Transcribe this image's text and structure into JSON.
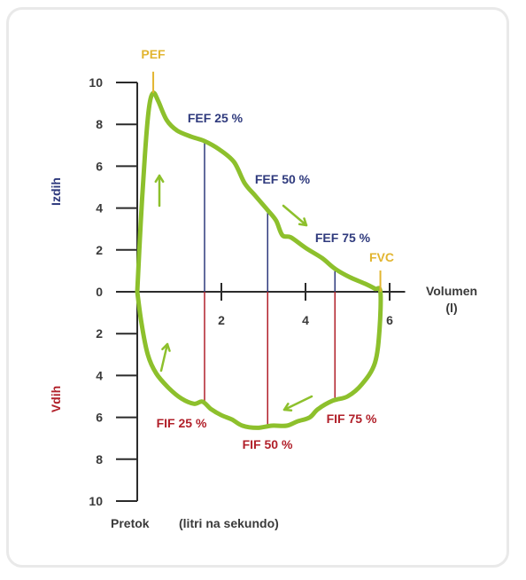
{
  "chart_data": {
    "type": "line",
    "x_axis": {
      "range": [
        0,
        6.2
      ],
      "ticks": [
        2,
        4,
        6
      ],
      "tick_labels": [
        "2",
        "4",
        "6"
      ],
      "label_line1": "Volumen",
      "label_line2": "(l)"
    },
    "y_axis": {
      "range": [
        -10,
        10
      ],
      "ticks": [
        10,
        8,
        6,
        4,
        2,
        0,
        -2,
        -4,
        -6,
        -8,
        -10
      ],
      "tick_labels": [
        "10",
        "8",
        "6",
        "4",
        "2",
        "0",
        "2",
        "4",
        "6",
        "8",
        "10"
      ],
      "upper_label": "Izdih",
      "lower_label": "Vdih",
      "bottom_label_left": "Pretok",
      "bottom_label_right": "(litri na sekundo)"
    },
    "loop_points": [
      [
        0.0,
        0.0
      ],
      [
        0.08,
        3.2
      ],
      [
        0.18,
        6.5
      ],
      [
        0.28,
        8.8
      ],
      [
        0.38,
        9.5
      ],
      [
        0.5,
        9.1
      ],
      [
        0.7,
        8.2
      ],
      [
        0.95,
        7.7
      ],
      [
        1.3,
        7.4
      ],
      [
        1.6,
        7.2
      ],
      [
        1.95,
        6.8
      ],
      [
        2.3,
        6.2
      ],
      [
        2.55,
        5.2
      ],
      [
        2.8,
        4.6
      ],
      [
        3.1,
        3.9
      ],
      [
        3.3,
        3.4
      ],
      [
        3.45,
        2.7
      ],
      [
        3.65,
        2.6
      ],
      [
        4.0,
        2.1
      ],
      [
        4.4,
        1.6
      ],
      [
        4.7,
        1.1
      ],
      [
        5.05,
        0.7
      ],
      [
        5.4,
        0.4
      ],
      [
        5.65,
        0.15
      ],
      [
        5.78,
        0.0
      ],
      [
        5.76,
        -1.8
      ],
      [
        5.65,
        -3.4
      ],
      [
        5.35,
        -4.4
      ],
      [
        5.0,
        -5.0
      ],
      [
        4.65,
        -5.2
      ],
      [
        4.3,
        -5.6
      ],
      [
        4.1,
        -6.0
      ],
      [
        3.8,
        -6.2
      ],
      [
        3.55,
        -6.4
      ],
      [
        3.2,
        -6.4
      ],
      [
        2.85,
        -6.5
      ],
      [
        2.5,
        -6.4
      ],
      [
        2.25,
        -6.1
      ],
      [
        2.0,
        -5.9
      ],
      [
        1.75,
        -5.6
      ],
      [
        1.55,
        -5.25
      ],
      [
        1.35,
        -5.35
      ],
      [
        1.05,
        -5.1
      ],
      [
        0.75,
        -4.6
      ],
      [
        0.45,
        -3.9
      ],
      [
        0.25,
        -3.0
      ],
      [
        0.1,
        -1.5
      ],
      [
        0.0,
        0.0
      ]
    ],
    "vertical_markers": [
      {
        "label": "FEF 25 %",
        "x": 1.6,
        "y_top": 7.2,
        "color": "#2f3a7d",
        "side": "exp"
      },
      {
        "label": "FEF 50 %",
        "x": 3.1,
        "y_top": 3.9,
        "color": "#2f3a7d",
        "side": "exp"
      },
      {
        "label": "FEF 75 %",
        "x": 4.7,
        "y_top": 1.1,
        "color": "#2f3a7d",
        "side": "exp"
      },
      {
        "label": "FIF 25 %",
        "x": 1.6,
        "y_bottom": -5.3,
        "color": "#b1202a",
        "side": "insp"
      },
      {
        "label": "FIF 50 %",
        "x": 3.1,
        "y_bottom": -6.45,
        "color": "#b1202a",
        "side": "insp"
      },
      {
        "label": "FIF 75 %",
        "x": 4.7,
        "y_bottom": -5.2,
        "color": "#b1202a",
        "side": "insp"
      }
    ],
    "peak_markers": [
      {
        "label": "PEF",
        "x": 0.38,
        "y": 9.5,
        "color": "#e2b530"
      },
      {
        "label": "FVC",
        "x": 5.78,
        "y": 0.0,
        "color": "#e2b530"
      }
    ],
    "loop_color": "#8dc02c",
    "axis_color": "#2b2b2b"
  }
}
